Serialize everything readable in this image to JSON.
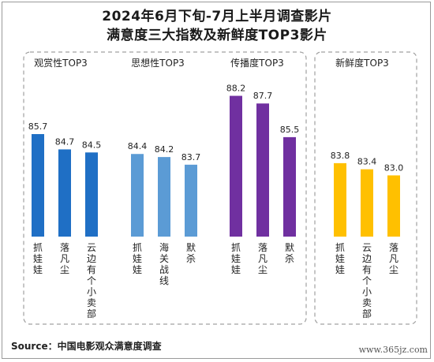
{
  "title_line1": "2024年6月下旬-7月上半月调查影片",
  "title_line2": "满意度三大指数及新鲜度TOP3影片",
  "source": "Source：中国电影观众满意度调查",
  "watermark": "www.365jz.com",
  "chart_data": [
    {
      "type": "bar",
      "title": "观赏性TOP3",
      "categories": [
        "抓娃娃",
        "落凡尘",
        "云边有个小卖部"
      ],
      "values": [
        85.7,
        84.7,
        84.5
      ],
      "color": "#1f6fc5"
    },
    {
      "type": "bar",
      "title": "思想性TOP3",
      "categories": [
        "抓娃娃",
        "海关战线",
        "默杀"
      ],
      "values": [
        84.4,
        84.2,
        83.7
      ],
      "color": "#5b9bd5"
    },
    {
      "type": "bar",
      "title": "传播度TOP3",
      "categories": [
        "抓娃娃",
        "落凡尘",
        "默杀"
      ],
      "values": [
        88.2,
        87.7,
        85.5
      ],
      "color": "#7030a0"
    },
    {
      "type": "bar",
      "title": "新鲜度TOP3",
      "categories": [
        "抓娃娃",
        "云边有个小卖部",
        "落凡尘"
      ],
      "values": [
        83.8,
        83.4,
        83.0
      ],
      "color": "#ffc000"
    }
  ]
}
